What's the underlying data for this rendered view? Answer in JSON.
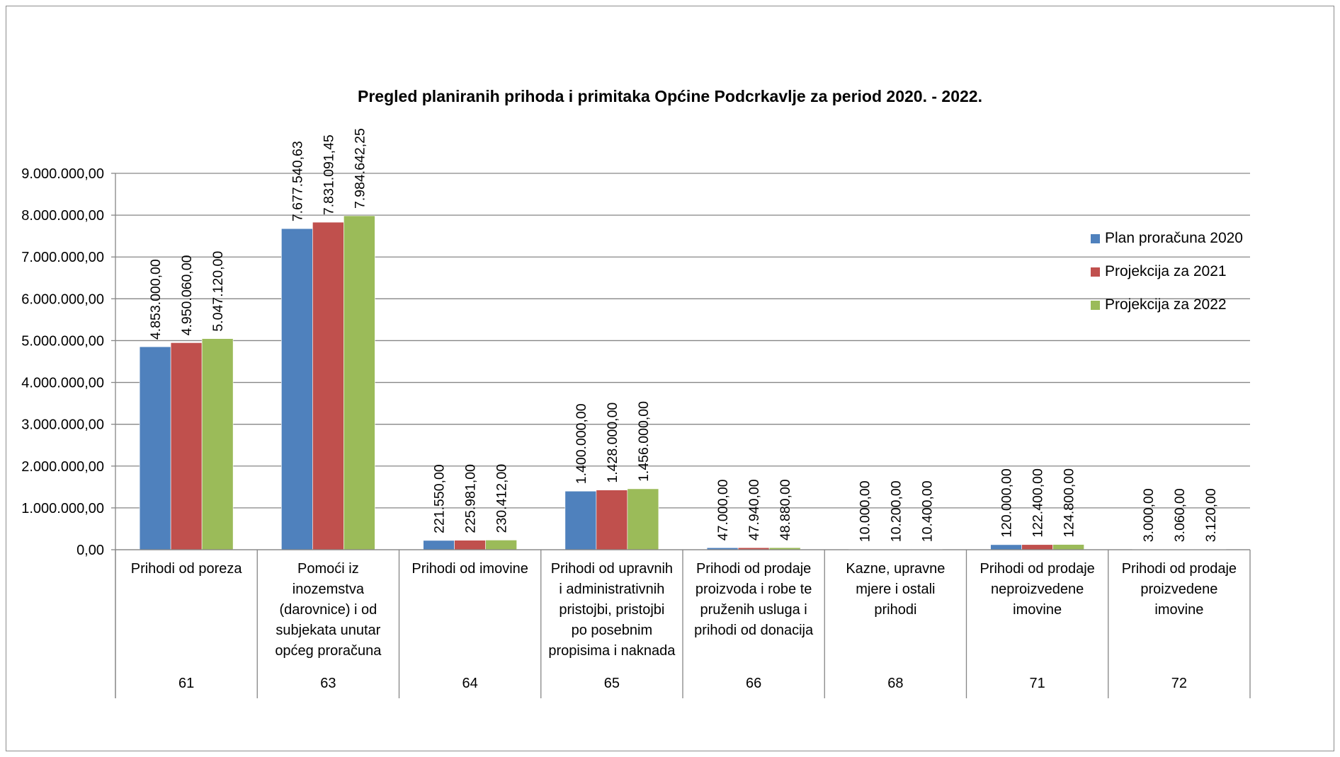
{
  "chart_data": {
    "type": "bar",
    "title": "Pregled planiranih prihoda i primitaka Općine Podcrkavlje za period 2020. - 2022.",
    "categories": [
      "Prihodi od poreza",
      "Pomoći iz inozemstva (darovnice) i od subjekata unutar općeg proračuna",
      "Prihodi od imovine",
      "Prihodi od upravnih i administrativnih pristojbi, pristojbi po posebnim propisima i naknada",
      "Prihodi od prodaje proizvoda i robe te pruženih usluga i prihodi od donacija",
      "Kazne, upravne mjere i ostali prihodi",
      "Prihodi od prodaje neproizvedene imovine",
      "Prihodi od prodaje proizvedene imovine"
    ],
    "category_lines": [
      [
        "Prihodi od poreza"
      ],
      [
        "Pomoći iz",
        "inozemstva",
        "(darovnice) i od",
        "subjekata unutar",
        "općeg proračuna"
      ],
      [
        "Prihodi od imovine"
      ],
      [
        "Prihodi od upravnih",
        "i administrativnih",
        "pristojbi, pristojbi",
        "po posebnim",
        "propisima i naknada"
      ],
      [
        "Prihodi od prodaje",
        "proizvoda i robe te",
        "pruženih usluga i",
        "prihodi od donacija"
      ],
      [
        "Kazne, upravne",
        "mjere i ostali",
        "prihodi"
      ],
      [
        "Prihodi od prodaje",
        "neproizvedene",
        "imovine"
      ],
      [
        "Prihodi od prodaje",
        "proizvedene",
        "imovine"
      ]
    ],
    "codes": [
      "61",
      "63",
      "64",
      "65",
      "66",
      "68",
      "71",
      "72"
    ],
    "series": [
      {
        "name": "Plan proračuna 2020",
        "color": "#4f81bd",
        "values": [
          4853000.0,
          7677540.63,
          221550.0,
          1400000.0,
          47000.0,
          10000.0,
          120000.0,
          3000.0
        ],
        "labels": [
          "4.853.000,00",
          "7.677.540,63",
          "221.550,00",
          "1.400.000,00",
          "47.000,00",
          "10.000,00",
          "120.000,00",
          "3.000,00"
        ]
      },
      {
        "name": "Projekcija za 2021",
        "color": "#c0504d",
        "values": [
          4950060.0,
          7831091.45,
          225981.0,
          1428000.0,
          47940.0,
          10200.0,
          122400.0,
          3060.0
        ],
        "labels": [
          "4.950.060,00",
          "7.831.091,45",
          "225.981,00",
          "1.428.000,00",
          "47.940,00",
          "10.200,00",
          "122.400,00",
          "3.060,00"
        ]
      },
      {
        "name": "Projekcija za 2022",
        "color": "#9bbb59",
        "values": [
          5047120.0,
          7984642.25,
          230412.0,
          1456000.0,
          48880.0,
          10400.0,
          124800.0,
          3120.0
        ],
        "labels": [
          "5.047.120,00",
          "7.984.642,25",
          "230.412,00",
          "1.456.000,00",
          "48.880,00",
          "10.400,00",
          "124.800,00",
          "3.120,00"
        ]
      }
    ],
    "yticks": [
      0,
      1000000,
      2000000,
      3000000,
      4000000,
      5000000,
      6000000,
      7000000,
      8000000,
      9000000
    ],
    "ytick_labels": [
      "0,00",
      "1.000.000,00",
      "2.000.000,00",
      "3.000.000,00",
      "4.000.000,00",
      "5.000.000,00",
      "6.000.000,00",
      "7.000.000,00",
      "8.000.000,00",
      "9.000.000,00"
    ],
    "ylim": [
      0,
      9000000
    ],
    "grid": true,
    "legend_position": "right"
  }
}
